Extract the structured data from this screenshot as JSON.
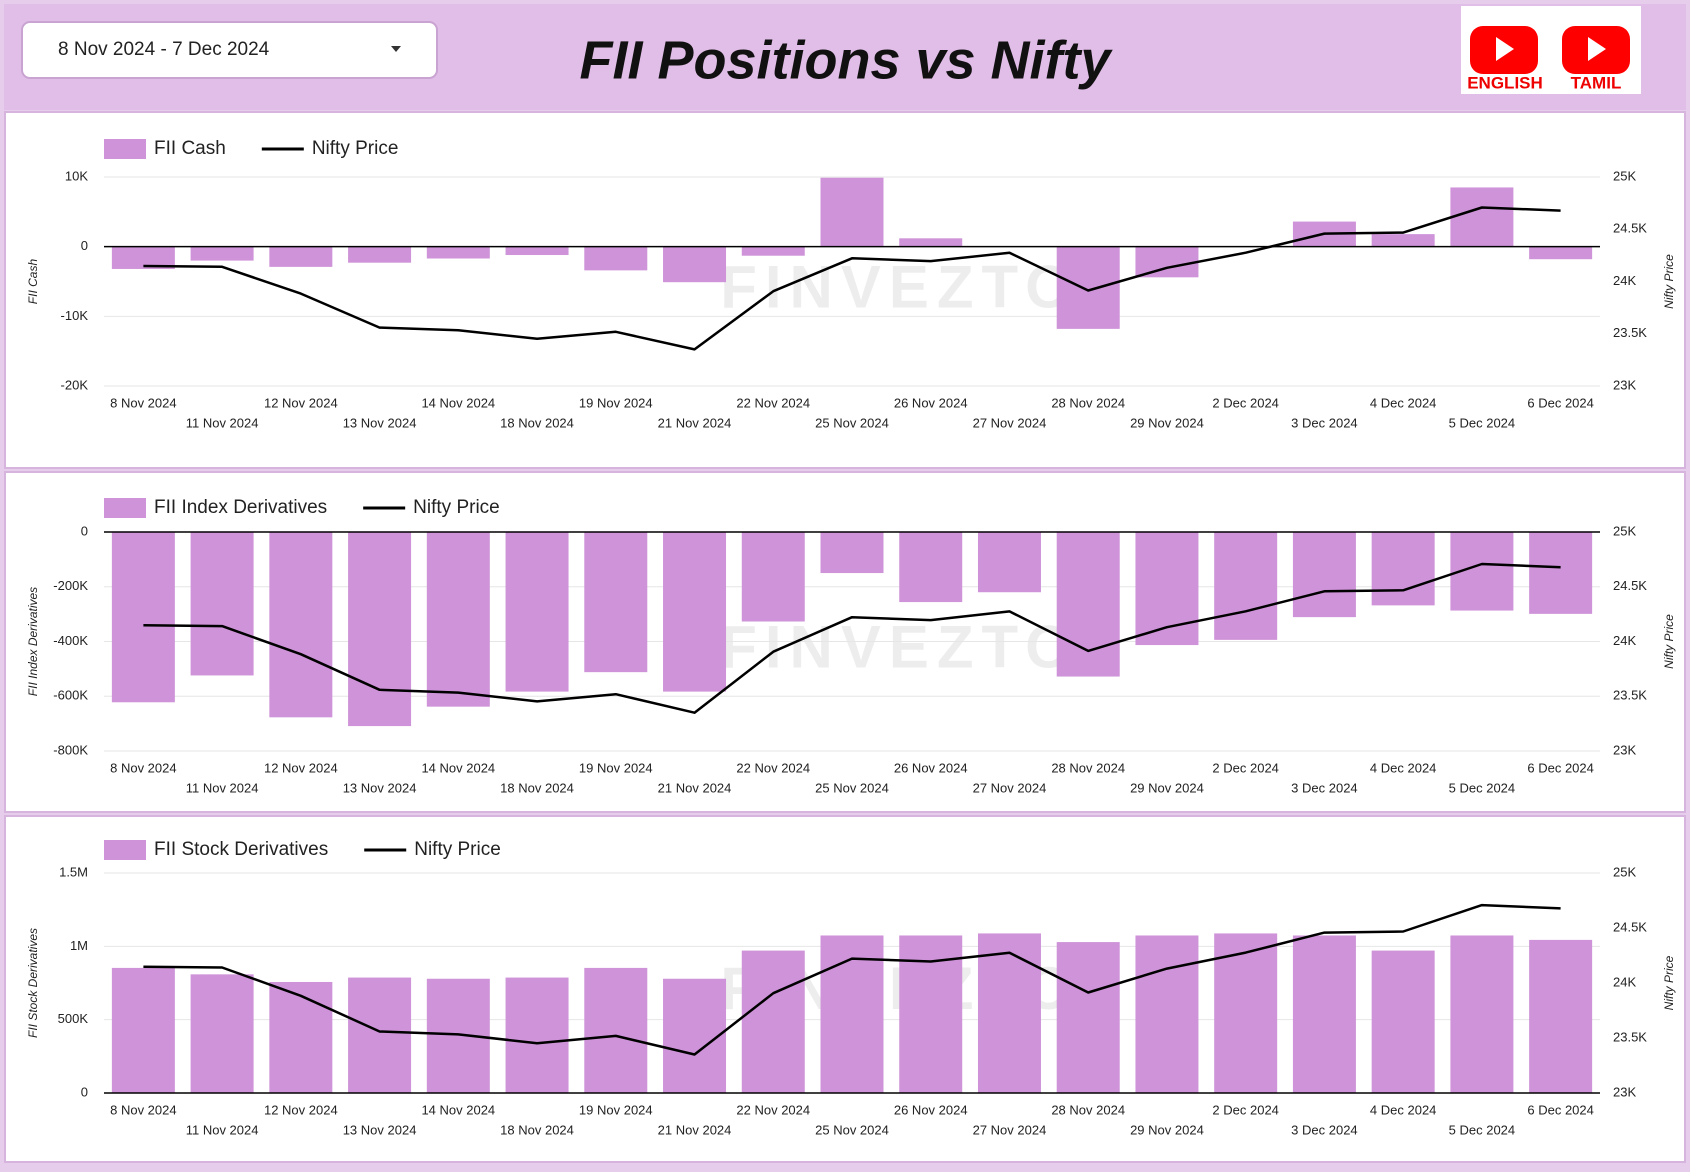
{
  "header": {
    "date_range": "8 Nov 2024 - 7 Dec 2024",
    "title": "FII Positions vs Nifty",
    "buttons": [
      "ENGLISH",
      "TAMIL"
    ],
    "watermark": "FINVEZTO"
  },
  "chart_data": [
    {
      "type": "bar_line",
      "categories": [
        "8 Nov 2024",
        "11 Nov 2024",
        "12 Nov 2024",
        "13 Nov 2024",
        "14 Nov 2024",
        "18 Nov 2024",
        "19 Nov 2024",
        "21 Nov 2024",
        "22 Nov 2024",
        "25 Nov 2024",
        "26 Nov 2024",
        "27 Nov 2024",
        "28 Nov 2024",
        "29 Nov 2024",
        "2 Dec 2024",
        "3 Dec 2024",
        "4 Dec 2024",
        "5 Dec 2024",
        "6 Dec 2024"
      ],
      "ylabel": "FII Cash",
      "y2label": "Nifty Price",
      "series": [
        {
          "name": "FII Cash",
          "color": "#ce93d8",
          "axis": "y",
          "values": [
            -3200,
            -2000,
            -2900,
            -2300,
            -1700,
            -1200,
            -3400,
            -5100,
            -1300,
            9900,
            1200,
            0,
            -11800,
            -4400,
            0,
            3600,
            1800,
            8500,
            -1800
          ]
        },
        {
          "name": "Nifty Price",
          "color": "#000000",
          "axis": "y2",
          "values": [
            24148,
            24141,
            23884,
            23559,
            23533,
            23453,
            23519,
            23350,
            23907,
            24222,
            24195,
            24275,
            23914,
            24131,
            24276,
            24458,
            24468,
            24708,
            24678
          ]
        }
      ],
      "ylim": [
        -20000,
        10000
      ],
      "yticks": [
        {
          "value": 10000,
          "label": "10K"
        },
        0,
        {
          "value": -10000,
          "label": "-10K"
        },
        {
          "value": -20000,
          "label": "-20K"
        }
      ],
      "y2lim": [
        23000,
        25000
      ],
      "y2ticks": [
        {
          "value": 25000,
          "label": "25K"
        },
        {
          "value": 24500,
          "label": "24.5K"
        },
        {
          "value": 24000,
          "label": "24K"
        },
        {
          "value": 23500,
          "label": "23.5K"
        },
        {
          "value": 23000,
          "label": "23K"
        }
      ],
      "grid": true,
      "legend": "top-left"
    },
    {
      "type": "bar_line",
      "categories": [
        "8 Nov 2024",
        "11 Nov 2024",
        "12 Nov 2024",
        "13 Nov 2024",
        "14 Nov 2024",
        "18 Nov 2024",
        "19 Nov 2024",
        "21 Nov 2024",
        "22 Nov 2024",
        "25 Nov 2024",
        "26 Nov 2024",
        "27 Nov 2024",
        "28 Nov 2024",
        "29 Nov 2024",
        "2 Dec 2024",
        "3 Dec 2024",
        "4 Dec 2024",
        "5 Dec 2024",
        "6 Dec 2024"
      ],
      "ylabel": "FII Index Derivatives",
      "y2label": "Nifty Price",
      "series": [
        {
          "name": "FII Index Derivatives",
          "color": "#ce93d8",
          "axis": "y",
          "values": [
            -622000,
            -524000,
            -677000,
            -709000,
            -638000,
            -583000,
            -512000,
            -583000,
            -327000,
            -150000,
            -256000,
            -220000,
            -528000,
            -413000,
            -394000,
            -311000,
            -268000,
            -287000,
            -299000
          ]
        },
        {
          "name": "Nifty Price",
          "color": "#000000",
          "axis": "y2",
          "values": [
            24148,
            24141,
            23884,
            23559,
            23533,
            23453,
            23519,
            23350,
            23907,
            24222,
            24195,
            24275,
            23914,
            24131,
            24276,
            24458,
            24468,
            24708,
            24678
          ]
        }
      ],
      "ylim": [
        -800000,
        0
      ],
      "yticks": [
        0,
        {
          "value": -200000,
          "label": "-200K"
        },
        {
          "value": -400000,
          "label": "-400K"
        },
        {
          "value": -600000,
          "label": "-600K"
        },
        {
          "value": -800000,
          "label": "-800K"
        }
      ],
      "y2lim": [
        23000,
        25000
      ],
      "y2ticks": [
        {
          "value": 25000,
          "label": "25K"
        },
        {
          "value": 24500,
          "label": "24.5K"
        },
        {
          "value": 24000,
          "label": "24K"
        },
        {
          "value": 23500,
          "label": "23.5K"
        },
        {
          "value": 23000,
          "label": "23K"
        }
      ],
      "grid": true,
      "legend": "top-left"
    },
    {
      "type": "bar_line",
      "categories": [
        "8 Nov 2024",
        "11 Nov 2024",
        "12 Nov 2024",
        "13 Nov 2024",
        "14 Nov 2024",
        "18 Nov 2024",
        "19 Nov 2024",
        "21 Nov 2024",
        "22 Nov 2024",
        "25 Nov 2024",
        "26 Nov 2024",
        "27 Nov 2024",
        "28 Nov 2024",
        "29 Nov 2024",
        "2 Dec 2024",
        "3 Dec 2024",
        "4 Dec 2024",
        "5 Dec 2024",
        "6 Dec 2024"
      ],
      "ylabel": "FII Stock Derivatives",
      "y2label": "Nifty Price",
      "series": [
        {
          "name": "FII Stock Derivatives",
          "color": "#ce93d8",
          "axis": "y",
          "values": [
            853000,
            809000,
            757000,
            787000,
            779000,
            787000,
            853000,
            779000,
            971000,
            1074000,
            1074000,
            1088000,
            1029000,
            1074000,
            1088000,
            1074000,
            971000,
            1074000,
            1044000
          ]
        },
        {
          "name": "Nifty Price",
          "color": "#000000",
          "axis": "y2",
          "values": [
            24148,
            24141,
            23884,
            23559,
            23533,
            23453,
            23519,
            23350,
            23907,
            24222,
            24195,
            24275,
            23914,
            24131,
            24276,
            24458,
            24468,
            24708,
            24678
          ]
        }
      ],
      "ylim": [
        0,
        1500000
      ],
      "yticks": [
        {
          "value": 1500000,
          "label": "1.5M"
        },
        {
          "value": 1000000,
          "label": "1M"
        },
        {
          "value": 500000,
          "label": "500K"
        },
        0
      ],
      "y2lim": [
        23000,
        25000
      ],
      "y2ticks": [
        {
          "value": 25000,
          "label": "25K"
        },
        {
          "value": 24500,
          "label": "24.5K"
        },
        {
          "value": 24000,
          "label": "24K"
        },
        {
          "value": 23500,
          "label": "23.5K"
        },
        {
          "value": 23000,
          "label": "23K"
        }
      ],
      "grid": true,
      "legend": "top-left"
    }
  ]
}
